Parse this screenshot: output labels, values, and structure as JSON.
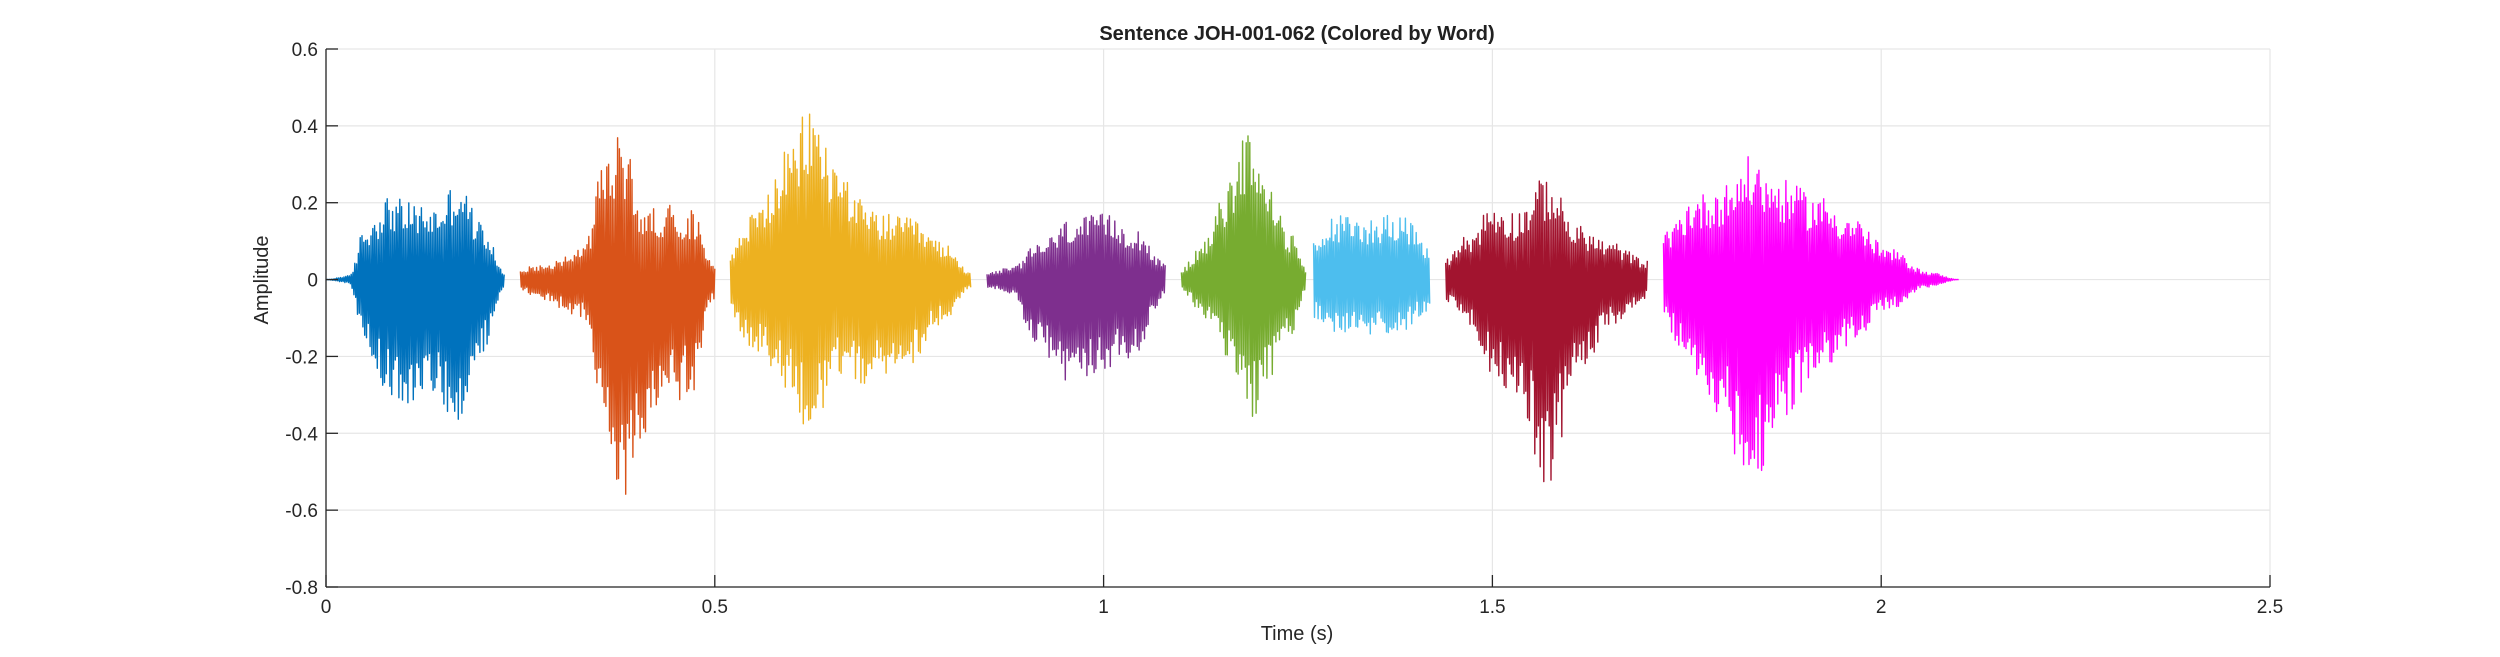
{
  "chart_data": {
    "type": "line",
    "title": "Sentence JOH-001-062 (Colored by Word)",
    "xlabel": "Time (s)",
    "ylabel": "Amplitude",
    "xlim": [
      0,
      2.5
    ],
    "ylim": [
      -0.8,
      0.6
    ],
    "xticks": [
      0,
      0.5,
      1,
      1.5,
      2,
      2.5
    ],
    "xtick_labels": [
      "0",
      "0.5",
      "1",
      "1.5",
      "2",
      "2.5"
    ],
    "yticks": [
      -0.8,
      -0.6,
      -0.4,
      -0.2,
      0,
      0.2,
      0.4,
      0.6
    ],
    "ytick_labels": [
      "-0.8",
      "-0.6",
      "-0.4",
      "-0.2",
      "0",
      "0.2",
      "0.4",
      "0.6"
    ],
    "grid": true,
    "background": "#ffffff",
    "grid_color": "#e6e6e6",
    "axis_color": "#262626",
    "series": [
      {
        "color": "#0072BD",
        "x": [
          0.0,
          0.03,
          0.05,
          0.08,
          0.11,
          0.14,
          0.17,
          0.2,
          0.23
        ],
        "env_pos": [
          0.0,
          0.01,
          0.14,
          0.22,
          0.2,
          0.19,
          0.26,
          0.15,
          0.02
        ],
        "env_neg": [
          0.0,
          -0.01,
          -0.18,
          -0.3,
          -0.33,
          -0.3,
          -0.38,
          -0.2,
          -0.02
        ]
      },
      {
        "color": "#D95319",
        "x": [
          0.25,
          0.28,
          0.33,
          0.36,
          0.38,
          0.41,
          0.44,
          0.47,
          0.5
        ],
        "env_pos": [
          0.03,
          0.04,
          0.08,
          0.32,
          0.38,
          0.18,
          0.2,
          0.18,
          0.05
        ],
        "env_neg": [
          -0.03,
          -0.06,
          -0.1,
          -0.45,
          -0.6,
          -0.42,
          -0.33,
          -0.3,
          -0.05
        ]
      },
      {
        "color": "#EDB120",
        "x": [
          0.52,
          0.55,
          0.6,
          0.62,
          0.66,
          0.7,
          0.75,
          0.79,
          0.83
        ],
        "env_pos": [
          0.08,
          0.18,
          0.35,
          0.46,
          0.3,
          0.18,
          0.16,
          0.1,
          0.02
        ],
        "env_neg": [
          -0.1,
          -0.2,
          -0.3,
          -0.42,
          -0.25,
          -0.28,
          -0.22,
          -0.12,
          -0.02
        ]
      },
      {
        "color": "#7E2F8E",
        "x": [
          0.85,
          0.88,
          0.92,
          0.96,
          1.0,
          1.04,
          1.08
        ],
        "env_pos": [
          0.02,
          0.03,
          0.1,
          0.16,
          0.17,
          0.14,
          0.04
        ],
        "env_neg": [
          -0.02,
          -0.04,
          -0.2,
          -0.28,
          -0.25,
          -0.2,
          -0.04
        ]
      },
      {
        "color": "#77AC30",
        "x": [
          1.1,
          1.13,
          1.16,
          1.19,
          1.21,
          1.24,
          1.26
        ],
        "env_pos": [
          0.03,
          0.1,
          0.25,
          0.43,
          0.25,
          0.12,
          0.03
        ],
        "env_neg": [
          -0.03,
          -0.1,
          -0.2,
          -0.39,
          -0.28,
          -0.15,
          -0.03
        ]
      },
      {
        "color": "#4DBEEE",
        "x": [
          1.27,
          1.3,
          1.34,
          1.38,
          1.42
        ],
        "env_pos": [
          0.1,
          0.17,
          0.16,
          0.18,
          0.08
        ],
        "env_neg": [
          -0.1,
          -0.14,
          -0.15,
          -0.14,
          -0.08
        ]
      },
      {
        "color": "#A2142F",
        "x": [
          1.44,
          1.47,
          1.5,
          1.53,
          1.57,
          1.61,
          1.65,
          1.7
        ],
        "env_pos": [
          0.06,
          0.12,
          0.2,
          0.18,
          0.27,
          0.14,
          0.1,
          0.05
        ],
        "env_neg": [
          -0.06,
          -0.12,
          -0.25,
          -0.3,
          -0.54,
          -0.28,
          -0.12,
          -0.05
        ]
      },
      {
        "color": "#FF00FF",
        "x": [
          1.72,
          1.76,
          1.8,
          1.83,
          1.87,
          1.92,
          1.96,
          2.01,
          2.06,
          2.1
        ],
        "env_pos": [
          0.12,
          0.22,
          0.25,
          0.32,
          0.26,
          0.22,
          0.17,
          0.08,
          0.02,
          0.0
        ],
        "env_neg": [
          -0.12,
          -0.25,
          -0.4,
          -0.58,
          -0.38,
          -0.25,
          -0.17,
          -0.08,
          -0.02,
          0.0
        ]
      }
    ]
  }
}
